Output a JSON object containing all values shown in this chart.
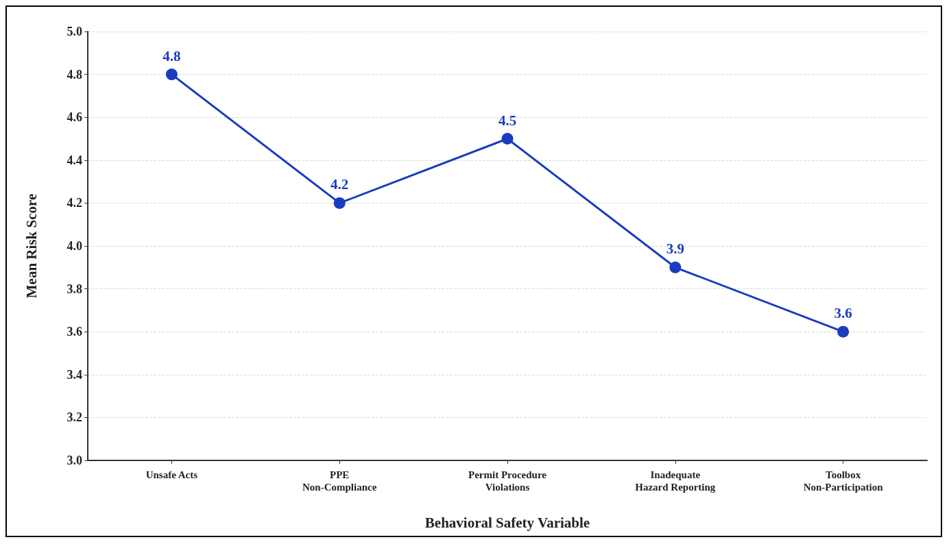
{
  "chart_data": {
    "type": "line",
    "xlabel": "Behavioral Safety Variable",
    "ylabel": "Mean Risk Score",
    "categories": [
      "Unsafe Acts",
      "PPE\nNon-Compliance",
      "Permit Procedure\nViolations",
      "Inadequate\nHazard Reporting",
      "Toolbox\nNon-Participation"
    ],
    "series": [
      {
        "color": "#1a3cbe",
        "values": [
          4.8,
          4.2,
          4.5,
          3.9,
          3.6
        ]
      }
    ],
    "ylim": [
      3.0,
      5.0
    ],
    "yticks": [
      {
        "value": 3.0,
        "label": "3.0"
      },
      {
        "value": 3.2,
        "label": "3.2"
      },
      {
        "value": 3.4,
        "label": "3.4"
      },
      {
        "value": 3.6,
        "label": "3.6"
      },
      {
        "value": 3.8,
        "label": "3.8"
      },
      {
        "value": 4.0,
        "label": "4.0"
      },
      {
        "value": 4.2,
        "label": "4.2"
      },
      {
        "value": 4.4,
        "label": "4.4"
      },
      {
        "value": 4.6,
        "label": "4.6"
      },
      {
        "value": 4.8,
        "label": "4.8"
      },
      {
        "value": 5.0,
        "label": "5.0"
      }
    ],
    "grid": "y",
    "data_labels": true,
    "marker": "circle",
    "line_style": "solid"
  }
}
